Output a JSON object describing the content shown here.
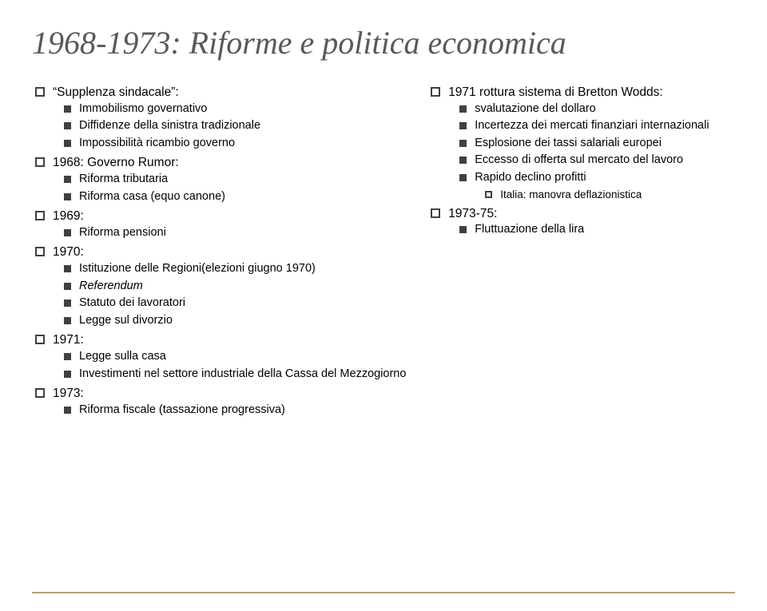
{
  "title": "1968-1973: Riforme e politica economica",
  "colors": {
    "title_color": "#595959",
    "text_color": "#000000",
    "bullet_color": "#404040",
    "footer_line_color": "#bfa26b",
    "background": "#ffffff"
  },
  "left": [
    {
      "text": "“Supplenza sindacale”:",
      "children": [
        {
          "text": "Immobilismo governativo"
        },
        {
          "text": "Diffidenze della sinistra tradizionale"
        },
        {
          "text": "Impossibilità ricambio governo"
        }
      ]
    },
    {
      "text": "1968: Governo Rumor:",
      "children": [
        {
          "text": "Riforma tributaria"
        },
        {
          "text": "Riforma casa (equo canone)"
        }
      ]
    },
    {
      "text": "1969:",
      "children": [
        {
          "text": "Riforma pensioni"
        }
      ]
    },
    {
      "text": "1970:",
      "children": [
        {
          "text": "Istituzione delle Regioni(elezioni giugno 1970)"
        },
        {
          "text": "Referendum",
          "italic": true
        },
        {
          "text": "Statuto dei lavoratori"
        },
        {
          "text": "Legge sul divorzio"
        }
      ]
    },
    {
      "text": "1971:",
      "children": [
        {
          "text": "Legge sulla casa"
        },
        {
          "text": "Investimenti nel settore industriale della Cassa del Mezzogiorno"
        }
      ]
    },
    {
      "text": "1973:",
      "children": [
        {
          "text": "Riforma fiscale (tassazione progressiva)"
        }
      ]
    }
  ],
  "right": [
    {
      "text": "1971 rottura sistema di Bretton Wodds:",
      "children": [
        {
          "text": "svalutazione del dollaro"
        },
        {
          "text": "Incertezza dei mercati finanziari internazionali"
        },
        {
          "text": "Esplosione dei tassi salariali europei"
        },
        {
          "text": "Eccesso di offerta sul mercato del lavoro"
        },
        {
          "text": "Rapido declino profitti",
          "children": [
            {
              "text": "Italia: manovra deflazionistica"
            }
          ]
        }
      ]
    },
    {
      "text": "1973-75:",
      "children": [
        {
          "text": "Fluttuazione della lira"
        }
      ]
    }
  ]
}
